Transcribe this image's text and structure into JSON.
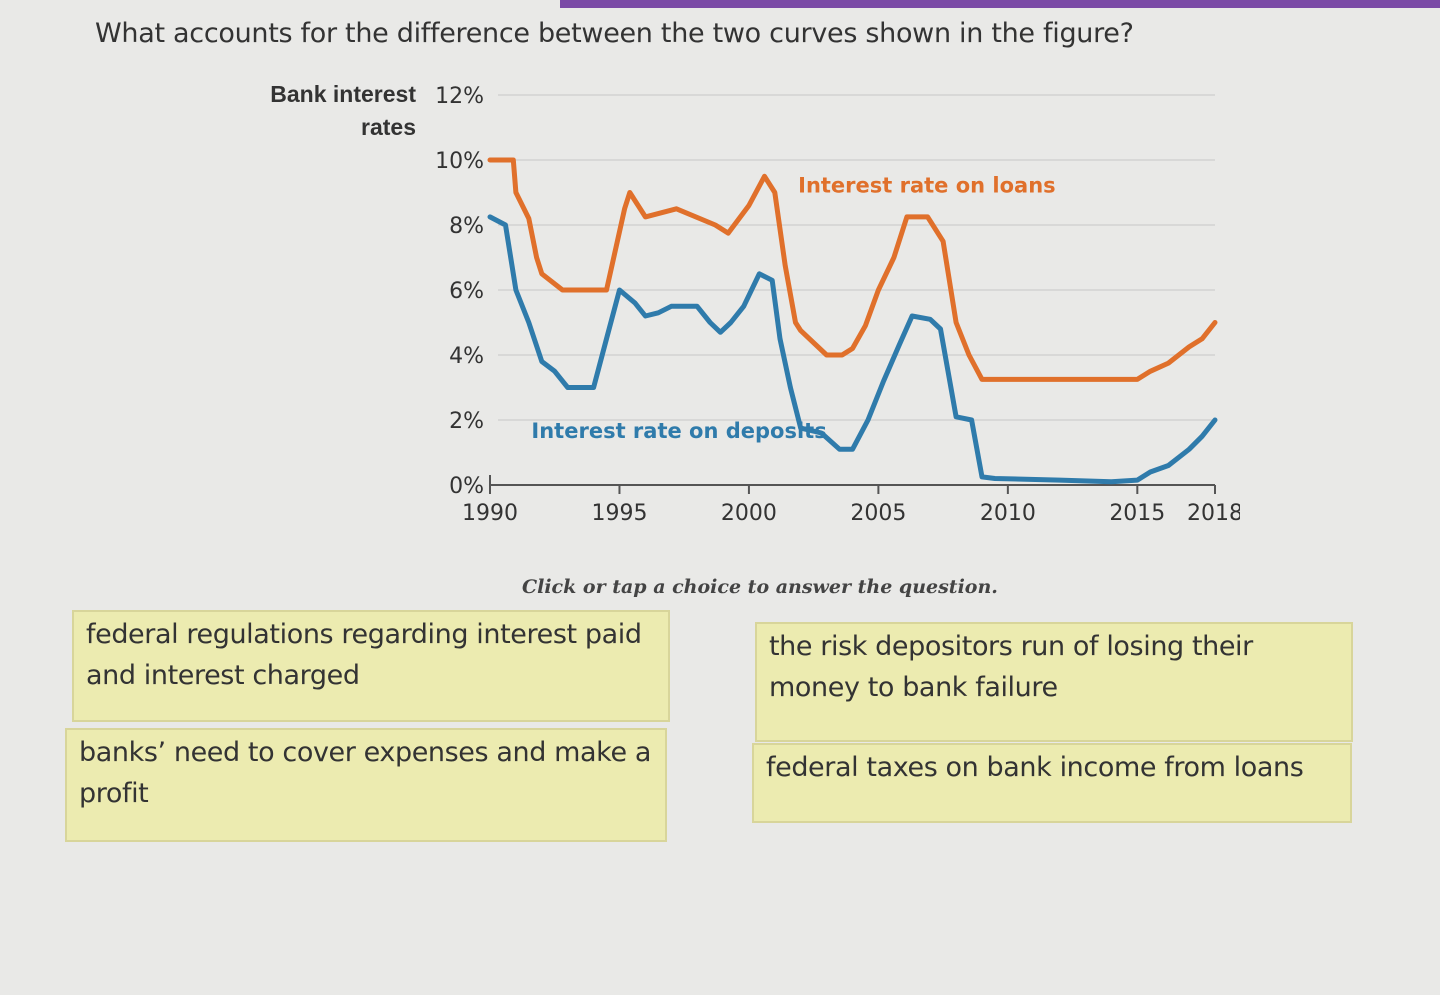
{
  "question": "What accounts for the difference between the two curves shown in the figure?",
  "instruction": "Click or tap a choice to answer the question.",
  "choices": [
    "federal regulations regarding interest paid and interest charged",
    "the risk depositors run of losing their money to bank failure",
    "banks’ need to cover expenses and make a profit",
    "federal taxes on bank income from loans"
  ],
  "colors": {
    "loans": "#e0702b",
    "deposits": "#2f7bab",
    "choice_bg": "#ecebb0",
    "top_bar": "#7b4aa6"
  },
  "chart_data": {
    "type": "line",
    "ylabel": "Bank interest rates",
    "xlim": [
      1990,
      2018
    ],
    "ylim": [
      0,
      12
    ],
    "x_ticks": [
      "1990",
      "1995",
      "2000",
      "2005",
      "2010",
      "2015",
      "2018"
    ],
    "y_ticks": [
      "0%",
      "2%",
      "4%",
      "6%",
      "8%",
      "10%",
      "12%"
    ],
    "grid": true,
    "series": [
      {
        "name": "Interest rate on loans",
        "color": "#e0702b",
        "points": [
          [
            1990.0,
            10.0
          ],
          [
            1990.9,
            10.0
          ],
          [
            1991.0,
            9.0
          ],
          [
            1991.5,
            8.2
          ],
          [
            1991.8,
            7.0
          ],
          [
            1992.0,
            6.5
          ],
          [
            1992.8,
            6.0
          ],
          [
            1994.5,
            6.0
          ],
          [
            1995.2,
            8.5
          ],
          [
            1995.4,
            9.0
          ],
          [
            1996.0,
            8.25
          ],
          [
            1997.2,
            8.5
          ],
          [
            1998.7,
            8.0
          ],
          [
            1999.2,
            7.75
          ],
          [
            2000.0,
            8.6
          ],
          [
            2000.6,
            9.5
          ],
          [
            2001.0,
            9.0
          ],
          [
            2001.4,
            6.75
          ],
          [
            2001.8,
            5.0
          ],
          [
            2002.0,
            4.75
          ],
          [
            2003.0,
            4.0
          ],
          [
            2003.6,
            4.0
          ],
          [
            2004.0,
            4.2
          ],
          [
            2004.5,
            4.9
          ],
          [
            2005.0,
            6.0
          ],
          [
            2005.6,
            7.0
          ],
          [
            2006.1,
            8.25
          ],
          [
            2006.9,
            8.25
          ],
          [
            2007.5,
            7.5
          ],
          [
            2007.8,
            6.0
          ],
          [
            2008.0,
            5.0
          ],
          [
            2008.5,
            4.0
          ],
          [
            2009.0,
            3.25
          ],
          [
            2015.0,
            3.25
          ],
          [
            2015.5,
            3.5
          ],
          [
            2016.2,
            3.75
          ],
          [
            2017.0,
            4.25
          ],
          [
            2017.5,
            4.5
          ],
          [
            2018.0,
            5.0
          ]
        ]
      },
      {
        "name": "Interest rate on deposits",
        "color": "#2f7bab",
        "points": [
          [
            1990.0,
            8.25
          ],
          [
            1990.6,
            8.0
          ],
          [
            1991.0,
            6.0
          ],
          [
            1991.5,
            5.0
          ],
          [
            1992.0,
            3.8
          ],
          [
            1992.5,
            3.5
          ],
          [
            1993.0,
            3.0
          ],
          [
            1994.0,
            3.0
          ],
          [
            1994.5,
            4.5
          ],
          [
            1995.0,
            6.0
          ],
          [
            1995.6,
            5.6
          ],
          [
            1996.0,
            5.2
          ],
          [
            1996.5,
            5.3
          ],
          [
            1997.0,
            5.5
          ],
          [
            1997.5,
            5.5
          ],
          [
            1998.0,
            5.5
          ],
          [
            1998.5,
            5.0
          ],
          [
            1998.9,
            4.7
          ],
          [
            1999.3,
            5.0
          ],
          [
            1999.8,
            5.5
          ],
          [
            2000.4,
            6.5
          ],
          [
            2000.9,
            6.3
          ],
          [
            2001.2,
            4.5
          ],
          [
            2001.6,
            3.0
          ],
          [
            2002.0,
            1.75
          ],
          [
            2002.8,
            1.6
          ],
          [
            2003.5,
            1.1
          ],
          [
            2004.0,
            1.1
          ],
          [
            2004.6,
            2.0
          ],
          [
            2005.2,
            3.2
          ],
          [
            2005.8,
            4.3
          ],
          [
            2006.3,
            5.2
          ],
          [
            2007.0,
            5.1
          ],
          [
            2007.4,
            4.8
          ],
          [
            2007.8,
            3.0
          ],
          [
            2008.0,
            2.1
          ],
          [
            2008.6,
            2.0
          ],
          [
            2009.0,
            0.25
          ],
          [
            2009.5,
            0.2
          ],
          [
            2012.0,
            0.15
          ],
          [
            2014.0,
            0.1
          ],
          [
            2015.0,
            0.15
          ],
          [
            2015.5,
            0.4
          ],
          [
            2016.2,
            0.6
          ],
          [
            2017.0,
            1.1
          ],
          [
            2017.5,
            1.5
          ],
          [
            2018.0,
            2.0
          ]
        ]
      }
    ]
  }
}
